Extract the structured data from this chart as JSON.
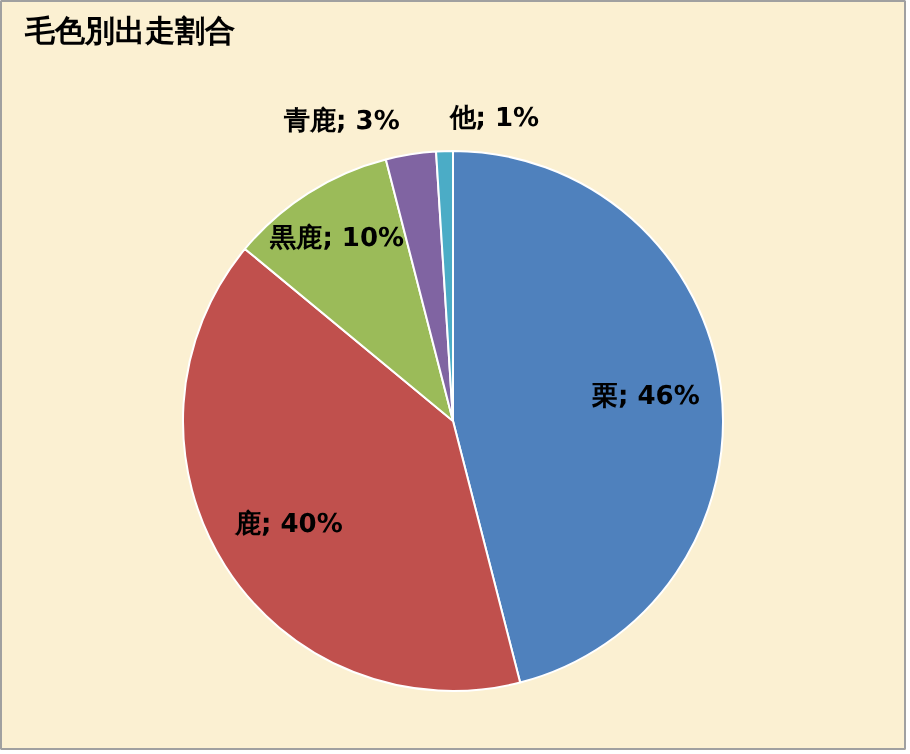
{
  "chart_data": {
    "type": "pie",
    "title": "毛色別出走割合",
    "categories": [
      "栗",
      "鹿",
      "黒鹿",
      "青鹿",
      "他"
    ],
    "values": [
      46,
      40,
      10,
      3,
      1
    ],
    "value_labels": [
      "46%",
      "40%",
      "10%",
      "3%",
      "1%"
    ],
    "colors": [
      "#4f81bd",
      "#c0504d",
      "#9bbb59",
      "#8064a2",
      "#4bacc6"
    ],
    "legend": false
  }
}
